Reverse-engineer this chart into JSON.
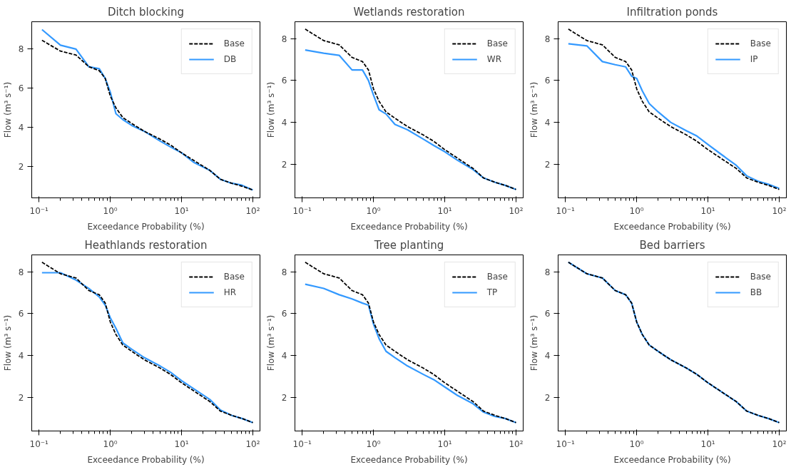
{
  "chart_data": [
    {
      "type": "line",
      "title": "Ditch blocking",
      "xlabel": "Exceedance Probability (%)",
      "ylabel": "Flow (m³ s⁻¹)",
      "log": "x",
      "grid": false,
      "legend": "top right",
      "xlim": [
        0.079,
        126
      ],
      "ylim": [
        0.4,
        9.4
      ],
      "xticks": [
        {
          "value": 0.1,
          "label": "10⁻¹"
        },
        {
          "value": 1,
          "label": "10⁰"
        },
        {
          "value": 10,
          "label": "10¹"
        },
        {
          "value": 100,
          "label": "10²"
        }
      ],
      "yticks": [
        2,
        4,
        6,
        8
      ],
      "x": [
        0.11,
        0.2,
        0.33,
        0.5,
        0.7,
        0.85,
        1.0,
        1.2,
        1.5,
        2,
        3,
        5,
        7,
        10,
        15,
        25,
        35,
        50,
        70,
        100
      ],
      "series": [
        {
          "name": "Base",
          "color": "#000000",
          "line_style": "dashed",
          "values": [
            8.45,
            7.9,
            7.7,
            7.1,
            6.9,
            6.5,
            5.6,
            5.0,
            4.5,
            4.2,
            3.8,
            3.4,
            3.1,
            2.7,
            2.3,
            1.8,
            1.35,
            1.15,
            1.0,
            0.8
          ]
        },
        {
          "name": "DB",
          "color": "#3399ff",
          "line_style": "solid",
          "values": [
            9.0,
            8.2,
            8.0,
            7.1,
            7.0,
            6.5,
            5.8,
            4.7,
            4.4,
            4.1,
            3.8,
            3.3,
            3.0,
            2.7,
            2.2,
            1.8,
            1.35,
            1.15,
            1.05,
            0.8
          ]
        }
      ]
    },
    {
      "type": "line",
      "title": "Wetlands restoration",
      "xlabel": "Exceedance Probability (%)",
      "ylabel": "Flow (m³ s⁻¹)",
      "log": "x",
      "grid": false,
      "legend": "top right",
      "xlim": [
        0.079,
        126
      ],
      "ylim": [
        0.4,
        8.8
      ],
      "xticks": [
        {
          "value": 0.1,
          "label": "10⁻¹"
        },
        {
          "value": 1,
          "label": "10⁰"
        },
        {
          "value": 10,
          "label": "10¹"
        },
        {
          "value": 100,
          "label": "10²"
        }
      ],
      "yticks": [
        2,
        4,
        6,
        8
      ],
      "x": [
        0.11,
        0.2,
        0.33,
        0.5,
        0.7,
        0.85,
        1.0,
        1.2,
        1.5,
        2,
        3,
        5,
        7,
        10,
        15,
        25,
        35,
        50,
        70,
        100
      ],
      "series": [
        {
          "name": "Base",
          "color": "#000000",
          "line_style": "dashed",
          "values": [
            8.45,
            7.9,
            7.7,
            7.1,
            6.9,
            6.5,
            5.6,
            5.0,
            4.5,
            4.2,
            3.8,
            3.4,
            3.1,
            2.7,
            2.3,
            1.8,
            1.35,
            1.15,
            1.0,
            0.8
          ]
        },
        {
          "name": "WR",
          "color": "#3399ff",
          "line_style": "solid",
          "values": [
            7.45,
            7.3,
            7.2,
            6.5,
            6.5,
            6.0,
            5.3,
            4.6,
            4.4,
            3.9,
            3.65,
            3.2,
            2.9,
            2.6,
            2.2,
            1.75,
            1.35,
            1.15,
            1.0,
            0.8
          ]
        }
      ]
    },
    {
      "type": "line",
      "title": "Infiltration ponds",
      "xlabel": "Exceedance Probability (%)",
      "ylabel": "Flow (m³ s⁻¹)",
      "log": "x",
      "grid": false,
      "legend": "top right",
      "xlim": [
        0.079,
        126
      ],
      "ylim": [
        0.4,
        8.8
      ],
      "xticks": [
        {
          "value": 0.1,
          "label": "10⁻¹"
        },
        {
          "value": 1,
          "label": "10⁰"
        },
        {
          "value": 10,
          "label": "10¹"
        },
        {
          "value": 100,
          "label": "10²"
        }
      ],
      "yticks": [
        2,
        4,
        6,
        8
      ],
      "x": [
        0.11,
        0.2,
        0.33,
        0.5,
        0.7,
        0.85,
        1.0,
        1.2,
        1.5,
        2,
        3,
        5,
        7,
        10,
        15,
        25,
        35,
        50,
        70,
        100
      ],
      "series": [
        {
          "name": "Base",
          "color": "#000000",
          "line_style": "dashed",
          "values": [
            8.45,
            7.9,
            7.7,
            7.1,
            6.9,
            6.5,
            5.6,
            5.0,
            4.5,
            4.2,
            3.8,
            3.4,
            3.1,
            2.7,
            2.3,
            1.8,
            1.35,
            1.15,
            1.0,
            0.8
          ]
        },
        {
          "name": "IP",
          "color": "#3399ff",
          "line_style": "solid",
          "values": [
            7.75,
            7.65,
            6.9,
            6.75,
            6.65,
            6.2,
            6.1,
            5.5,
            4.9,
            4.5,
            4.0,
            3.6,
            3.35,
            2.95,
            2.5,
            1.95,
            1.45,
            1.2,
            1.05,
            0.85
          ]
        }
      ]
    },
    {
      "type": "line",
      "title": "Heathlands restoration",
      "xlabel": "Exceedance Probability (%)",
      "ylabel": "Flow (m³ s⁻¹)",
      "log": "x",
      "grid": false,
      "legend": "top right",
      "xlim": [
        0.079,
        126
      ],
      "ylim": [
        0.4,
        8.8
      ],
      "xticks": [
        {
          "value": 0.1,
          "label": "10⁻¹"
        },
        {
          "value": 1,
          "label": "10⁰"
        },
        {
          "value": 10,
          "label": "10¹"
        },
        {
          "value": 100,
          "label": "10²"
        }
      ],
      "yticks": [
        2,
        4,
        6,
        8
      ],
      "x": [
        0.11,
        0.2,
        0.33,
        0.5,
        0.7,
        0.85,
        1.0,
        1.2,
        1.5,
        2,
        3,
        5,
        7,
        10,
        15,
        25,
        35,
        50,
        70,
        100
      ],
      "series": [
        {
          "name": "Base",
          "color": "#000000",
          "line_style": "dashed",
          "values": [
            8.45,
            7.9,
            7.7,
            7.1,
            6.9,
            6.5,
            5.6,
            5.0,
            4.5,
            4.2,
            3.8,
            3.4,
            3.1,
            2.7,
            2.3,
            1.8,
            1.35,
            1.15,
            1.0,
            0.8
          ]
        },
        {
          "name": "HR",
          "color": "#3399ff",
          "line_style": "solid",
          "values": [
            7.95,
            7.95,
            7.6,
            7.2,
            6.8,
            6.4,
            5.8,
            5.3,
            4.6,
            4.3,
            3.9,
            3.5,
            3.2,
            2.8,
            2.4,
            1.9,
            1.4,
            1.15,
            1.0,
            0.8
          ]
        }
      ]
    },
    {
      "type": "line",
      "title": "Tree planting",
      "xlabel": "Exceedance Probability (%)",
      "ylabel": "Flow (m³ s⁻¹)",
      "log": "x",
      "grid": false,
      "legend": "top right",
      "xlim": [
        0.079,
        126
      ],
      "ylim": [
        0.4,
        8.8
      ],
      "xticks": [
        {
          "value": 0.1,
          "label": "10⁻¹"
        },
        {
          "value": 1,
          "label": "10⁰"
        },
        {
          "value": 10,
          "label": "10¹"
        },
        {
          "value": 100,
          "label": "10²"
        }
      ],
      "yticks": [
        2,
        4,
        6,
        8
      ],
      "x": [
        0.11,
        0.2,
        0.33,
        0.5,
        0.7,
        0.85,
        1.0,
        1.2,
        1.5,
        2,
        3,
        5,
        7,
        10,
        15,
        25,
        35,
        50,
        70,
        100
      ],
      "series": [
        {
          "name": "Base",
          "color": "#000000",
          "line_style": "dashed",
          "values": [
            8.45,
            7.9,
            7.7,
            7.1,
            6.9,
            6.5,
            5.6,
            5.0,
            4.5,
            4.2,
            3.8,
            3.4,
            3.1,
            2.7,
            2.3,
            1.8,
            1.35,
            1.15,
            1.0,
            0.8
          ]
        },
        {
          "name": "TP",
          "color": "#3399ff",
          "line_style": "solid",
          "values": [
            7.4,
            7.2,
            6.9,
            6.7,
            6.5,
            6.4,
            5.5,
            4.8,
            4.2,
            3.9,
            3.5,
            3.1,
            2.85,
            2.5,
            2.1,
            1.7,
            1.3,
            1.1,
            1.0,
            0.8
          ]
        }
      ]
    },
    {
      "type": "line",
      "title": "Bed barriers",
      "xlabel": "Exceedance Probability (%)",
      "ylabel": "Flow (m³ s⁻¹)",
      "log": "x",
      "grid": false,
      "legend": "top right",
      "xlim": [
        0.079,
        126
      ],
      "ylim": [
        0.4,
        8.8
      ],
      "xticks": [
        {
          "value": 0.1,
          "label": "10⁻¹"
        },
        {
          "value": 1,
          "label": "10⁰"
        },
        {
          "value": 10,
          "label": "10¹"
        },
        {
          "value": 100,
          "label": "10²"
        }
      ],
      "yticks": [
        2,
        4,
        6,
        8
      ],
      "x": [
        0.11,
        0.2,
        0.33,
        0.5,
        0.7,
        0.85,
        1.0,
        1.2,
        1.5,
        2,
        3,
        5,
        7,
        10,
        15,
        25,
        35,
        50,
        70,
        100
      ],
      "series": [
        {
          "name": "Base",
          "color": "#000000",
          "line_style": "dashed",
          "values": [
            8.45,
            7.9,
            7.7,
            7.1,
            6.9,
            6.5,
            5.6,
            5.0,
            4.5,
            4.2,
            3.8,
            3.4,
            3.1,
            2.7,
            2.3,
            1.8,
            1.35,
            1.15,
            1.0,
            0.8
          ]
        },
        {
          "name": "BB",
          "color": "#3399ff",
          "line_style": "solid",
          "values": [
            8.45,
            7.9,
            7.7,
            7.1,
            6.9,
            6.5,
            5.6,
            5.0,
            4.5,
            4.2,
            3.8,
            3.4,
            3.1,
            2.7,
            2.3,
            1.8,
            1.35,
            1.15,
            1.0,
            0.8
          ]
        }
      ]
    }
  ]
}
